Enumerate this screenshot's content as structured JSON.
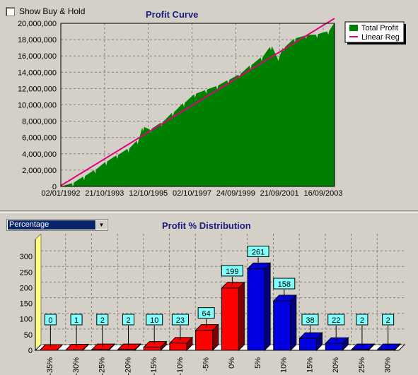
{
  "toolbar": {
    "show_buy_hold_label": "Show Buy & Hold",
    "show_buy_hold_checked": false
  },
  "select": {
    "value": "Percentage"
  },
  "colors": {
    "area": "#008000",
    "line": "#e0007a",
    "loss": "#ff0000",
    "gain": "#0000e0",
    "label_bg": "#80ffff"
  },
  "chart_data": [
    {
      "type": "area",
      "title": "Profit Curve",
      "legend": {
        "position": "top-right",
        "entries": [
          "Total Profit",
          "Linear Reg"
        ]
      },
      "ylim": [
        0,
        20000000
      ],
      "y_ticks": [
        "0",
        "2,000,000",
        "4,000,000",
        "6,000,000",
        "8,000,000",
        "10,000,000",
        "12,000,000",
        "14,000,000",
        "16,000,000",
        "18,000,000",
        "20,000,000"
      ],
      "x_ticks": [
        "02/01/1992",
        "21/10/1993",
        "12/10/1995",
        "02/10/1997",
        "24/09/1999",
        "21/09/2001",
        "16/09/2003"
      ],
      "x_range": [
        "1992-01-02",
        "2004-05-01"
      ],
      "series": [
        {
          "name": "Total Profit",
          "x": [
            "1992-01-02",
            "1992-07-01",
            "1993-01-01",
            "1993-07-01",
            "1994-01-01",
            "1994-07-01",
            "1995-01-01",
            "1995-06-01",
            "1995-09-01",
            "1996-01-01",
            "1996-07-01",
            "1997-01-01",
            "1997-07-01",
            "1998-01-01",
            "1998-07-01",
            "1999-01-01",
            "1999-07-01",
            "2000-01-01",
            "2000-07-01",
            "2001-01-01",
            "2001-06-01",
            "2001-10-01",
            "2002-01-01",
            "2002-07-01",
            "2003-01-01",
            "2003-07-01",
            "2004-01-01",
            "2004-05-01"
          ],
          "values": [
            0,
            400000,
            1200000,
            2000000,
            3000000,
            3800000,
            4600000,
            5600000,
            7200000,
            7000000,
            7800000,
            9000000,
            10200000,
            11300000,
            11800000,
            12300000,
            13000000,
            13700000,
            14800000,
            15800000,
            17100000,
            15800000,
            17000000,
            18100000,
            18500000,
            18600000,
            19000000,
            20100000
          ]
        },
        {
          "name": "Linear Reg",
          "x": [
            "1992-01-02",
            "2004-05-01"
          ],
          "values": [
            100000,
            20600000
          ]
        }
      ]
    },
    {
      "type": "bar",
      "title": "Profit % Distribution",
      "categories": [
        "-35%",
        "-30%",
        "-25%",
        "-20%",
        "-15%",
        "-10%",
        "-5%",
        "0%",
        "5%",
        "10%",
        "15%",
        "20%",
        "25%",
        "30%"
      ],
      "values": [
        0,
        1,
        2,
        2,
        10,
        23,
        64,
        199,
        261,
        158,
        38,
        22,
        2,
        2
      ],
      "ylim": [
        0,
        350
      ],
      "y_ticks": [
        "0",
        "50",
        "100",
        "150",
        "200",
        "250",
        "300"
      ]
    }
  ]
}
